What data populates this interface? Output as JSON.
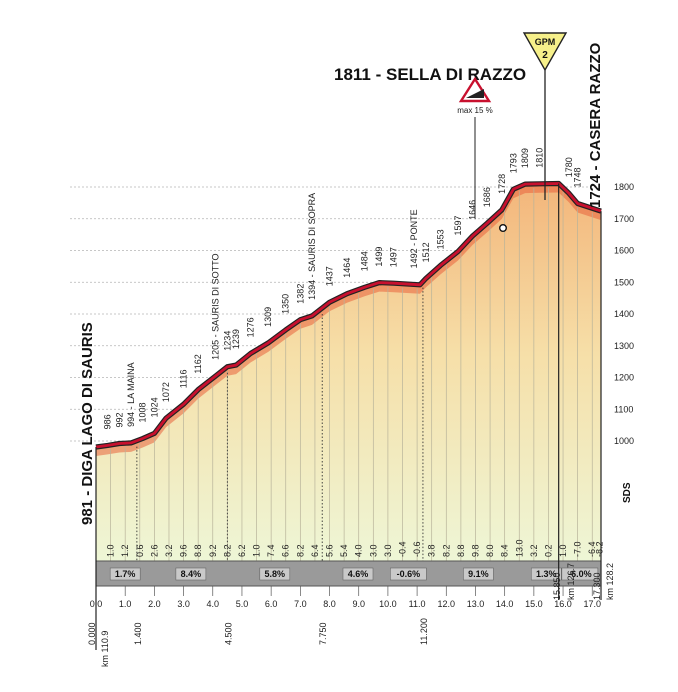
{
  "chart_data": {
    "type": "area",
    "summit": {
      "label": "1811 - SELLA DI RAZZO",
      "km": 15.85,
      "gpm_label": "GPM",
      "gpm_category": "2"
    },
    "max_gradient_label": "max 15 %",
    "start": {
      "label": "981 - DIGA LAGO DI SAURIS",
      "km_total_label": "km 110.9",
      "km_value_label": "0.000"
    },
    "finish": {
      "label": "1724 - CASERA RAZZO",
      "km_total_label": "km 128.2",
      "km_value_label": "17.300"
    },
    "summit_km_total_label": "km 126.7",
    "summit_km_value_label": "15.850",
    "sds_label": "SDS",
    "elevation_axis": {
      "ticks": [
        1000,
        1100,
        1200,
        1300,
        1400,
        1500,
        1600,
        1700,
        1800
      ],
      "range": [
        960,
        1820
      ]
    },
    "distance_axis": {
      "ticks": [
        "0.0",
        "1.0",
        "2.0",
        "3.0",
        "4.0",
        "5.0",
        "6.0",
        "7.0",
        "8.0",
        "9.0",
        "10.0",
        "11.0",
        "12.0",
        "13.0",
        "14.0",
        "15.0",
        "16.0",
        "17.0"
      ],
      "range": [
        0,
        17.3
      ]
    },
    "special_km": [
      {
        "km": 1.4,
        "label": "1.400"
      },
      {
        "km": 4.5,
        "label": "4.500"
      },
      {
        "km": 7.75,
        "label": "7.750"
      },
      {
        "km": 11.2,
        "label": "11.200"
      }
    ],
    "profile": [
      {
        "km": 0.0,
        "alt": 981
      },
      {
        "km": 0.4,
        "alt": 986
      },
      {
        "km": 0.8,
        "alt": 992
      },
      {
        "km": 1.2,
        "alt": 994
      },
      {
        "km": 1.6,
        "alt": 1008
      },
      {
        "km": 2.0,
        "alt": 1024
      },
      {
        "km": 2.4,
        "alt": 1072
      },
      {
        "km": 3.0,
        "alt": 1116
      },
      {
        "km": 3.5,
        "alt": 1162
      },
      {
        "km": 4.1,
        "alt": 1205
      },
      {
        "km": 4.5,
        "alt": 1234
      },
      {
        "km": 4.8,
        "alt": 1239
      },
      {
        "km": 5.3,
        "alt": 1276
      },
      {
        "km": 5.9,
        "alt": 1309
      },
      {
        "km": 6.5,
        "alt": 1350
      },
      {
        "km": 7.0,
        "alt": 1382
      },
      {
        "km": 7.4,
        "alt": 1394
      },
      {
        "km": 8.0,
        "alt": 1437
      },
      {
        "km": 8.6,
        "alt": 1464
      },
      {
        "km": 9.2,
        "alt": 1484
      },
      {
        "km": 9.7,
        "alt": 1499
      },
      {
        "km": 10.2,
        "alt": 1497
      },
      {
        "km": 11.1,
        "alt": 1492
      },
      {
        "km": 11.3,
        "alt": 1512
      },
      {
        "km": 11.8,
        "alt": 1553
      },
      {
        "km": 12.4,
        "alt": 1597
      },
      {
        "km": 12.9,
        "alt": 1646
      },
      {
        "km": 13.4,
        "alt": 1686
      },
      {
        "km": 13.9,
        "alt": 1728
      },
      {
        "km": 14.3,
        "alt": 1793
      },
      {
        "km": 14.7,
        "alt": 1809
      },
      {
        "km": 15.2,
        "alt": 1810
      },
      {
        "km": 15.85,
        "alt": 1811
      },
      {
        "km": 16.2,
        "alt": 1780
      },
      {
        "km": 16.5,
        "alt": 1748
      },
      {
        "km": 17.3,
        "alt": 1724
      }
    ],
    "altitude_labels": [
      {
        "km": 0.4,
        "text": "986"
      },
      {
        "km": 0.8,
        "text": "992"
      },
      {
        "km": 1.2,
        "text": "994 - LA MAINA"
      },
      {
        "km": 1.6,
        "text": "1008"
      },
      {
        "km": 2.0,
        "text": "1024"
      },
      {
        "km": 2.4,
        "text": "1072"
      },
      {
        "km": 3.0,
        "text": "1116"
      },
      {
        "km": 3.5,
        "text": "1162"
      },
      {
        "km": 4.1,
        "text": "1205 - SAURIS DI SOTTO"
      },
      {
        "km": 4.5,
        "text": "1234"
      },
      {
        "km": 4.8,
        "text": "1239"
      },
      {
        "km": 5.3,
        "text": "1276"
      },
      {
        "km": 5.9,
        "text": "1309"
      },
      {
        "km": 6.5,
        "text": "1350"
      },
      {
        "km": 7.0,
        "text": "1382"
      },
      {
        "km": 7.4,
        "text": "1394 - SAURIS DI SOPRA"
      },
      {
        "km": 8.0,
        "text": "1437"
      },
      {
        "km": 8.6,
        "text": "1464"
      },
      {
        "km": 9.2,
        "text": "1484"
      },
      {
        "km": 9.7,
        "text": "1499"
      },
      {
        "km": 10.2,
        "text": "1497"
      },
      {
        "km": 10.9,
        "text": "1492 - PONTE"
      },
      {
        "km": 11.3,
        "text": "1512"
      },
      {
        "km": 11.8,
        "text": "1553"
      },
      {
        "km": 12.4,
        "text": "1597"
      },
      {
        "km": 12.9,
        "text": "1646"
      },
      {
        "km": 13.4,
        "text": "1686"
      },
      {
        "km": 13.9,
        "text": "1728"
      },
      {
        "km": 14.3,
        "text": "1793"
      },
      {
        "km": 14.7,
        "text": "1809"
      },
      {
        "km": 15.2,
        "text": "1810"
      },
      {
        "km": 16.2,
        "text": "1780"
      },
      {
        "km": 16.5,
        "text": "1748"
      }
    ],
    "gradient_labels": [
      {
        "km": 0.5,
        "text": "1.0"
      },
      {
        "km": 1.0,
        "text": "1.2"
      },
      {
        "km": 1.5,
        "text": "0.6"
      },
      {
        "km": 2.0,
        "text": "2.6"
      },
      {
        "km": 2.5,
        "text": "3.2"
      },
      {
        "km": 3.0,
        "text": "9.6"
      },
      {
        "km": 3.5,
        "text": "8.8"
      },
      {
        "km": 4.0,
        "text": "9.2"
      },
      {
        "km": 4.5,
        "text": "8.2"
      },
      {
        "km": 5.0,
        "text": "6.2"
      },
      {
        "km": 5.5,
        "text": "1.0"
      },
      {
        "km": 6.0,
        "text": "7.4"
      },
      {
        "km": 6.5,
        "text": "6.6"
      },
      {
        "km": 7.0,
        "text": "8.2"
      },
      {
        "km": 7.5,
        "text": "6.4"
      },
      {
        "km": 8.0,
        "text": "5.6"
      },
      {
        "km": 8.5,
        "text": "5.4"
      },
      {
        "km": 9.0,
        "text": "4.0"
      },
      {
        "km": 9.5,
        "text": "3.0"
      },
      {
        "km": 10.0,
        "text": "3.0"
      },
      {
        "km": 10.5,
        "text": "-0.4"
      },
      {
        "km": 11.0,
        "text": "-0.6"
      },
      {
        "km": 11.5,
        "text": "3.8"
      },
      {
        "km": 12.0,
        "text": "8.2"
      },
      {
        "km": 12.5,
        "text": "8.8"
      },
      {
        "km": 13.0,
        "text": "9.8"
      },
      {
        "km": 13.5,
        "text": "8.0"
      },
      {
        "km": 14.0,
        "text": "8.4"
      },
      {
        "km": 14.5,
        "text": "13.0"
      },
      {
        "km": 15.0,
        "text": "3.2"
      },
      {
        "km": 15.5,
        "text": "0.2"
      },
      {
        "km": 16.0,
        "text": "1.0"
      },
      {
        "km": 16.5,
        "text": "-7.0"
      },
      {
        "km": 17.0,
        "text": "-6.4"
      },
      {
        "km": 17.25,
        "text": "-8.2"
      }
    ],
    "average_gradients": [
      {
        "from": 0.0,
        "to": 2.0,
        "text": "1.7%"
      },
      {
        "from": 2.0,
        "to": 4.5,
        "text": "8.4%"
      },
      {
        "from": 4.5,
        "to": 7.75,
        "text": "5.8%"
      },
      {
        "from": 7.75,
        "to": 10.2,
        "text": "4.6%"
      },
      {
        "from": 10.2,
        "to": 11.2,
        "text": "-0.6%"
      },
      {
        "from": 11.2,
        "to": 15.0,
        "text": "9.1%"
      },
      {
        "from": 15.0,
        "to": 15.85,
        "text": "1.3%"
      },
      {
        "from": 15.85,
        "to": 17.3,
        "text": "-6.0%"
      }
    ],
    "colors": {
      "road": "#c8102e",
      "steep": "#d9442e",
      "fill_top": "#f4c28a",
      "fill_bottom": "#eef7d8",
      "base_band": "#9a9a9a",
      "gpm_flag": "#f6f08a"
    }
  }
}
